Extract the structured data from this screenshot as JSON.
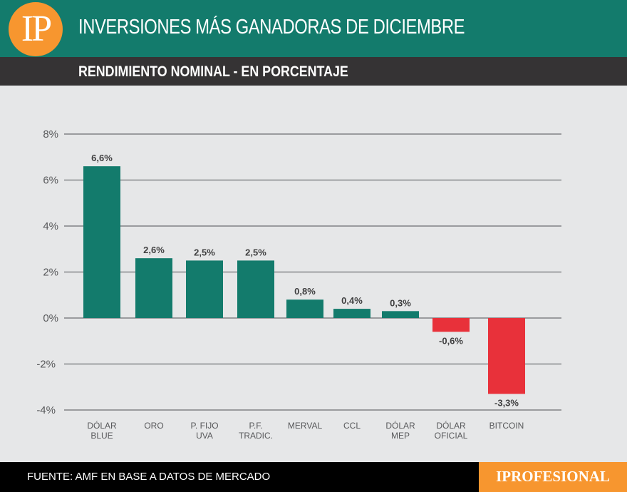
{
  "header": {
    "logo": "IP",
    "title": "INVERSIONES MÁS GANADORAS DE DICIEMBRE",
    "subtitle": "RENDIMIENTO NOMINAL - EN PORCENTAJE"
  },
  "footer": {
    "source": "FUENTE: AMF EN BASE A DATOS DE MERCADO",
    "brand": "IPROFESIONAL"
  },
  "chart_data": {
    "type": "bar",
    "title": "INVERSIONES MÁS GANADORAS DE DICIEMBRE",
    "subtitle": "RENDIMIENTO NOMINAL - EN PORCENTAJE",
    "categories": [
      [
        "DÓLAR",
        "BLUE"
      ],
      [
        "ORO"
      ],
      [
        "P. FIJO",
        "UVA"
      ],
      [
        "P.F.",
        "TRADIC."
      ],
      [
        "MERVAL"
      ],
      [
        "CCL"
      ],
      [
        "DÓLAR",
        "MEP"
      ],
      [
        "DÓLAR",
        "OFICIAL"
      ],
      [
        "BITCOIN"
      ]
    ],
    "values": [
      6.6,
      2.6,
      2.5,
      2.5,
      0.8,
      0.4,
      0.3,
      -0.6,
      -3.3
    ],
    "data_labels": [
      "6,6%",
      "2,6%",
      "2,5%",
      "2,5%",
      "0,8%",
      "0,4%",
      "0,3%",
      "-0,6%",
      "-3,3%"
    ],
    "yticks": [
      8,
      6,
      4,
      2,
      0,
      -2,
      -4
    ],
    "ytick_labels": [
      "8%",
      "6%",
      "4%",
      "2%",
      "0%",
      "-2%",
      "-4%"
    ],
    "ylim": [
      -4,
      8
    ],
    "grid": true,
    "colors": {
      "positive": "#137b6c",
      "negative": "#e8313a"
    }
  }
}
